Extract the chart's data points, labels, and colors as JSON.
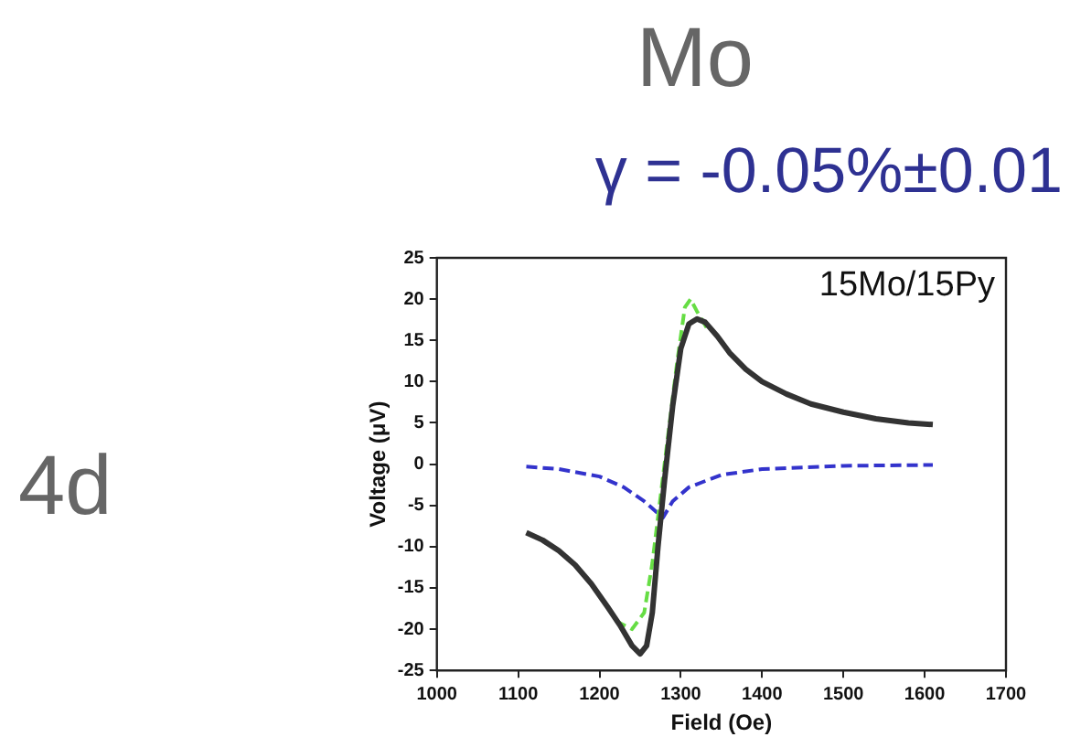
{
  "chart_data": {
    "type": "line",
    "title": "Mo",
    "subtitle": "γ = -0.05%±0.01",
    "xlabel": "Field (Oe)",
    "ylabel": "Voltage (μV)",
    "annotations": [
      "15Mo/15Py",
      "4d"
    ],
    "xlim": [
      1000,
      1700
    ],
    "xticks": [
      1000,
      1100,
      1200,
      1300,
      1400,
      1500,
      1600,
      1700
    ],
    "ylim": [
      -25,
      25
    ],
    "yticks": [
      -25,
      -20,
      -15,
      -10,
      -5,
      0,
      5,
      10,
      15,
      20,
      25
    ],
    "grid": false,
    "legend": false,
    "series": [
      {
        "color": "#333333",
        "line_style": "solid",
        "x": [
          1110,
          1130,
          1150,
          1170,
          1190,
          1210,
          1225,
          1240,
          1250,
          1258,
          1265,
          1272,
          1280,
          1290,
          1300,
          1310,
          1320,
          1330,
          1345,
          1360,
          1380,
          1400,
          1430,
          1460,
          1500,
          1540,
          1580,
          1610
        ],
        "values": [
          -8.3,
          -9.2,
          -10.5,
          -12.2,
          -14.5,
          -17.3,
          -19.5,
          -22,
          -23,
          -22,
          -18,
          -10,
          -2,
          7,
          14,
          17,
          17.6,
          17.2,
          15.5,
          13.5,
          11.5,
          10,
          8.5,
          7.3,
          6.3,
          5.5,
          5,
          4.8
        ]
      },
      {
        "color": "#66dd44",
        "line_style": "dashed",
        "x": [
          1220,
          1240,
          1255,
          1265,
          1280,
          1295,
          1305,
          1312,
          1320,
          1335
        ],
        "values": [
          -19,
          -20,
          -18,
          -12,
          0,
          12,
          19,
          20,
          18.5,
          16
        ]
      },
      {
        "color": "#3333cc",
        "line_style": "dashed",
        "x": [
          1110,
          1150,
          1200,
          1230,
          1255,
          1278,
          1290,
          1310,
          1350,
          1400,
          1500,
          1610
        ],
        "values": [
          -0.3,
          -0.6,
          -1.5,
          -2.8,
          -4.5,
          -6.5,
          -4.5,
          -2.8,
          -1.3,
          -0.6,
          -0.2,
          -0.1
        ]
      }
    ]
  }
}
